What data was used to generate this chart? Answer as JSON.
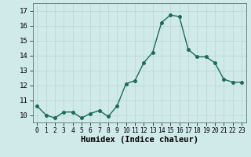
{
  "xlabel": "Humidex (Indice chaleur)",
  "x": [
    0,
    1,
    2,
    3,
    4,
    5,
    6,
    7,
    8,
    9,
    10,
    11,
    12,
    13,
    14,
    15,
    16,
    17,
    18,
    19,
    20,
    21,
    22,
    23
  ],
  "y": [
    10.6,
    10.0,
    9.8,
    10.2,
    10.2,
    9.8,
    10.1,
    10.3,
    9.9,
    10.6,
    12.1,
    12.3,
    13.5,
    14.2,
    16.2,
    16.7,
    16.6,
    14.4,
    13.9,
    13.9,
    13.5,
    12.4,
    12.2,
    12.2
  ],
  "line_color": "#1a6b5a",
  "marker": "o",
  "markersize": 2.5,
  "linewidth": 1.0,
  "bg_color": "#d0eaea",
  "grid_color": "#b8d4d4",
  "ylim": [
    9.5,
    17.5
  ],
  "yticks": [
    10,
    11,
    12,
    13,
    14,
    15,
    16,
    17
  ],
  "xlim": [
    -0.5,
    23.5
  ],
  "xticks": [
    0,
    1,
    2,
    3,
    4,
    5,
    6,
    7,
    8,
    9,
    10,
    11,
    12,
    13,
    14,
    15,
    16,
    17,
    18,
    19,
    20,
    21,
    22,
    23
  ],
  "xlabel_fontsize": 7.5,
  "tick_fontsize": 6.5,
  "xtick_fontsize": 5.8
}
